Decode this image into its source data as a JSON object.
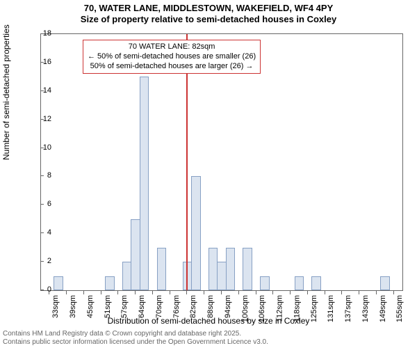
{
  "title_line1": "70, WATER LANE, MIDDLESTOWN, WAKEFIELD, WF4 4PY",
  "title_line2": "Size of property relative to semi-detached houses in Coxley",
  "ylabel": "Number of semi-detached properties",
  "xlabel": "Distribution of semi-detached houses by size in Coxley",
  "footer_line1": "Contains HM Land Registry data © Crown copyright and database right 2025.",
  "footer_line2": "Contains public sector information licensed under the Open Government Licence v3.0.",
  "chart": {
    "type": "histogram",
    "ylim": [
      0,
      18
    ],
    "ytick_step": 2,
    "x_categories": [
      "33sqm",
      "39sqm",
      "45sqm",
      "51sqm",
      "57sqm",
      "64sqm",
      "70sqm",
      "76sqm",
      "82sqm",
      "88sqm",
      "94sqm",
      "100sqm",
      "106sqm",
      "112sqm",
      "118sqm",
      "125sqm",
      "131sqm",
      "137sqm",
      "143sqm",
      "149sqm",
      "155sqm"
    ],
    "bars": [
      {
        "x_index": 0.5,
        "value": 1
      },
      {
        "x_index": 3.5,
        "value": 1
      },
      {
        "x_index": 4.5,
        "value": 2
      },
      {
        "x_index": 5.0,
        "value": 5
      },
      {
        "x_index": 5.5,
        "value": 15
      },
      {
        "x_index": 6.5,
        "value": 3
      },
      {
        "x_index": 8.0,
        "value": 2
      },
      {
        "x_index": 8.5,
        "value": 8
      },
      {
        "x_index": 9.5,
        "value": 3
      },
      {
        "x_index": 10.0,
        "value": 2
      },
      {
        "x_index": 10.5,
        "value": 3
      },
      {
        "x_index": 11.5,
        "value": 3
      },
      {
        "x_index": 12.5,
        "value": 1
      },
      {
        "x_index": 14.5,
        "value": 1
      },
      {
        "x_index": 15.5,
        "value": 1
      },
      {
        "x_index": 19.5,
        "value": 1
      }
    ],
    "bar_fill": "#dbe4f0",
    "bar_stroke": "#87a0c4",
    "background_color": "#ffffff",
    "axis_color": "#666666",
    "marker": {
      "x_index": 8.0,
      "color": "#cc3333"
    },
    "annotation": {
      "line1": "70 WATER LANE: 82sqm",
      "line2": "← 50% of semi-detached houses are smaller (26)",
      "line3": "50% of semi-detached houses are larger (26) →",
      "border_color": "#cc3333"
    }
  }
}
